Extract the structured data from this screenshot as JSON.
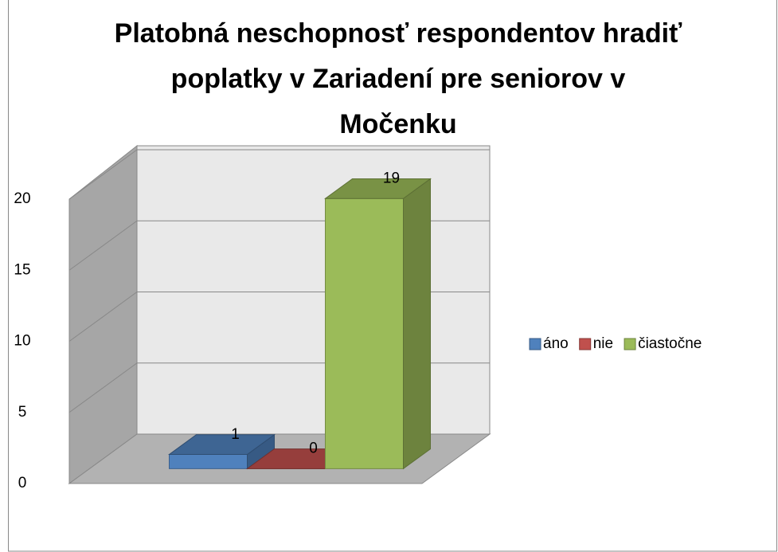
{
  "chart_data": {
    "type": "bar3d",
    "title": "Platobná neschopnosť respondentov hradiť poplatky v Zariadení pre seniorov v Močenku",
    "categories": [
      null
    ],
    "series": [
      {
        "name": "áno",
        "color": "#4f81bd",
        "values": [
          1
        ]
      },
      {
        "name": "nie",
        "color": "#c0504d",
        "values": [
          0
        ]
      },
      {
        "name": "čiastočne",
        "color": "#9bbb59",
        "values": [
          19
        ]
      }
    ],
    "ylim": [
      0,
      20
    ],
    "yticks": [
      0,
      5,
      10,
      15,
      20
    ],
    "grid": true,
    "legend": "right"
  }
}
